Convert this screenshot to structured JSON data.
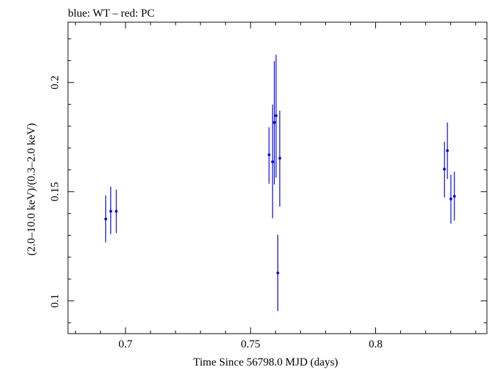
{
  "chart_data": {
    "type": "scatter",
    "title": "blue: WT – red: PC",
    "xlabel": "Time Since 56798.0 MJD (days)",
    "ylabel": "(2.0–10.0 keV)/(0.3–2.0 keV)",
    "xlim": [
      0.677,
      0.8445
    ],
    "ylim": [
      0.085,
      0.2276
    ],
    "x_ticks": [
      0.7,
      0.75,
      0.8
    ],
    "x_tick_labels": [
      "0.7",
      "0.75",
      "0.8"
    ],
    "y_ticks": [
      0.1,
      0.15,
      0.2
    ],
    "y_tick_labels": [
      "0.1",
      "0.15",
      "0.2"
    ],
    "grid": false,
    "series": [
      {
        "name": "WT",
        "color": "#0000dd",
        "points": [
          {
            "x": 0.6921,
            "y": 0.1375,
            "y_lo": 0.1268,
            "y_hi": 0.1483
          },
          {
            "x": 0.6941,
            "y": 0.141,
            "y_lo": 0.1305,
            "y_hi": 0.1523
          },
          {
            "x": 0.6963,
            "y": 0.141,
            "y_lo": 0.1311,
            "y_hi": 0.151
          },
          {
            "x": 0.7574,
            "y": 0.1669,
            "y_lo": 0.1536,
            "y_hi": 0.1795
          },
          {
            "x": 0.7588,
            "y": 0.1637,
            "y_lo": 0.1378,
            "y_hi": 0.1899
          },
          {
            "x": 0.7595,
            "y": 0.1817,
            "y_lo": 0.1533,
            "y_hi": 0.2098
          },
          {
            "x": 0.7602,
            "y": 0.1848,
            "y_lo": 0.1564,
            "y_hi": 0.2127
          },
          {
            "x": 0.7609,
            "y": 0.1128,
            "y_lo": 0.0953,
            "y_hi": 0.1303
          },
          {
            "x": 0.7617,
            "y": 0.1653,
            "y_lo": 0.1431,
            "y_hi": 0.1871
          },
          {
            "x": 0.8275,
            "y": 0.1603,
            "y_lo": 0.1474,
            "y_hi": 0.1729
          },
          {
            "x": 0.8287,
            "y": 0.1688,
            "y_lo": 0.1558,
            "y_hi": 0.1817
          },
          {
            "x": 0.8301,
            "y": 0.1467,
            "y_lo": 0.1353,
            "y_hi": 0.1578
          },
          {
            "x": 0.8315,
            "y": 0.1479,
            "y_lo": 0.1368,
            "y_hi": 0.1592
          }
        ]
      }
    ]
  }
}
